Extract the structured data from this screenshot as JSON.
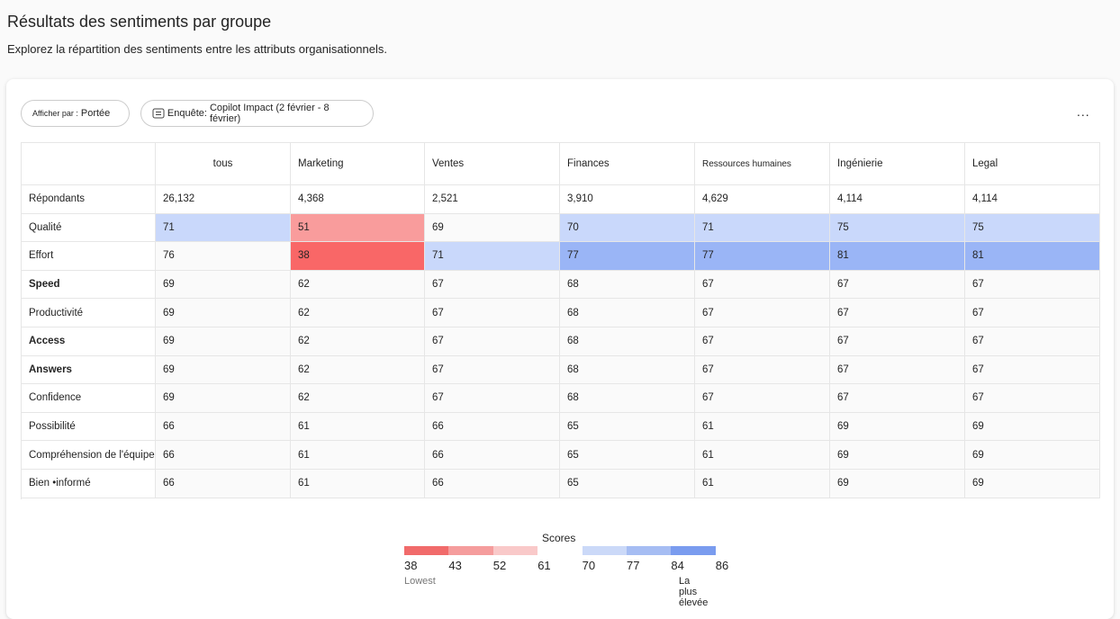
{
  "header": {
    "title": "Résultats des sentiments par groupe",
    "subtitle": "Explorez la répartition des sentiments entre les attributs organisationnels."
  },
  "toolbar": {
    "view_label": "Afficher par :",
    "view_value": "Portée",
    "survey_label": "Enquête:",
    "survey_value": "Copilot Impact (2 février - 8 février)",
    "menu": "..."
  },
  "table": {
    "columns": [
      "tous",
      "Marketing",
      "Ventes",
      "Finances",
      "Ressources humaines",
      "Ingénierie",
      "Legal"
    ],
    "rows": [
      {
        "label": "Répondants",
        "cells": [
          "26,132",
          "4,368",
          "2,521",
          "3,910",
          "4,629",
          "4,114",
          "4,114"
        ]
      },
      {
        "label": "Qualité",
        "cells": [
          "71",
          "51",
          "69",
          "70",
          "71",
          "75",
          "75"
        ],
        "colors": [
          "#c9d8fb",
          "#f99c9c",
          null,
          "#c9d8fb",
          "#c9d8fb",
          "#c9d8fb",
          "#c9d8fb"
        ]
      },
      {
        "label": "Effort",
        "cells": [
          "76",
          "38",
          "71",
          "77",
          "77",
          "81",
          "81"
        ],
        "colors": [
          null,
          "#f96767",
          "#c9d8fb",
          "#9ab5f6",
          "#9ab5f6",
          "#9ab5f6",
          "#9ab5f6"
        ]
      },
      {
        "label": "Speed",
        "cells": [
          "69",
          "62",
          "67",
          "68",
          "67",
          "67",
          "67"
        ],
        "bold": true
      },
      {
        "label": "Productivité",
        "cells": [
          "69",
          "62",
          "67",
          "68",
          "67",
          "67",
          "67"
        ]
      },
      {
        "label": "Access",
        "cells": [
          "69",
          "62",
          "67",
          "68",
          "67",
          "67",
          "67"
        ],
        "bold": true
      },
      {
        "label": "Answers",
        "cells": [
          "69",
          "62",
          "67",
          "68",
          "67",
          "67",
          "67"
        ],
        "bold": true
      },
      {
        "label": "Confidence",
        "cells": [
          "69",
          "62",
          "67",
          "68",
          "67",
          "67",
          "67"
        ]
      },
      {
        "label": "Possibilité",
        "cells": [
          "66",
          "61",
          "66",
          "65",
          "61",
          "69",
          "69"
        ]
      },
      {
        "label": "Compréhension de l'équipe",
        "cells": [
          "66",
          "61",
          "66",
          "65",
          "61",
          "69",
          "69"
        ]
      },
      {
        "label": "Bien •informé",
        "cells": [
          "66",
          "61",
          "66",
          "65",
          "61",
          "69",
          "69"
        ]
      }
    ]
  },
  "legend": {
    "title": "Scores",
    "ticks": [
      38,
      43,
      52,
      61,
      70,
      77,
      84,
      86
    ],
    "colors": [
      "#f16b6b",
      "#f59d9d",
      "#f9c9c9",
      null,
      "#cbd9f8",
      "#a6bdf3",
      "#7a9cef"
    ],
    "low_label": "Lowest",
    "high_label": "La plus élevée"
  }
}
